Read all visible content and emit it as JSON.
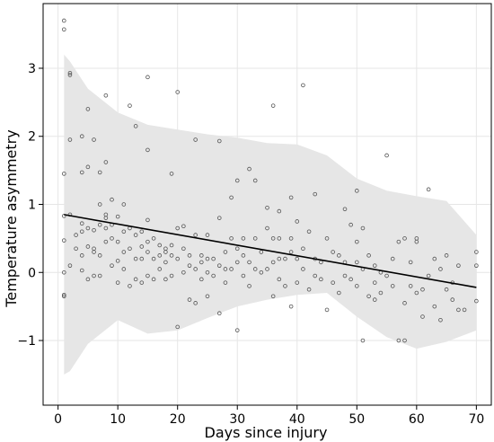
{
  "chart_data": {
    "type": "scatter",
    "title": "",
    "xlabel": "Days since injury",
    "ylabel": "Temperature asymmetry",
    "xlim": [
      -2.5,
      72.5
    ],
    "ylim": [
      -1.95,
      3.95
    ],
    "xticks": [
      0,
      10,
      20,
      30,
      40,
      50,
      60,
      70
    ],
    "xtick_labels": [
      "0",
      "10",
      "20",
      "30",
      "40",
      "50",
      "60",
      "70"
    ],
    "yticks": [
      -1,
      0,
      1,
      2,
      3
    ],
    "ytick_labels": [
      "−1",
      "0",
      "1",
      "2",
      "3"
    ],
    "grid": true,
    "legend": false,
    "colors": {
      "points": "#555555",
      "fit": "#000000",
      "band": "#e6e6e6",
      "grid": "#e6e6e6"
    },
    "fit_line": {
      "x": [
        1,
        70
      ],
      "y": [
        0.85,
        -0.22
      ]
    },
    "confidence_band": {
      "x": [
        1,
        2,
        5,
        10,
        15,
        20,
        25,
        30,
        35,
        40,
        45,
        50,
        55,
        60,
        65,
        70
      ],
      "upper": [
        3.2,
        3.1,
        2.7,
        2.35,
        2.17,
        2.1,
        2.03,
        1.98,
        1.9,
        1.88,
        1.72,
        1.38,
        1.2,
        1.12,
        1.05,
        0.55
      ],
      "lower": [
        -1.5,
        -1.45,
        -1.05,
        -0.7,
        -0.9,
        -0.85,
        -0.67,
        -0.5,
        -0.4,
        -0.33,
        -0.3,
        -0.65,
        -0.95,
        -1.12,
        -1.02,
        -0.85
      ]
    },
    "points": [
      [
        1,
        3.7
      ],
      [
        1,
        3.57
      ],
      [
        1,
        1.45
      ],
      [
        1,
        0.47
      ],
      [
        1,
        0.83
      ],
      [
        1,
        0
      ],
      [
        1,
        -0.33
      ],
      [
        1,
        -0.35
      ],
      [
        2,
        2.93
      ],
      [
        2,
        2.9
      ],
      [
        2,
        1.95
      ],
      [
        2,
        0.85
      ],
      [
        2,
        0.1
      ],
      [
        3,
        0.35
      ],
      [
        3,
        0.55
      ],
      [
        4,
        2
      ],
      [
        4,
        1.47
      ],
      [
        4,
        0.72
      ],
      [
        4,
        0.6
      ],
      [
        4,
        0.25
      ],
      [
        4,
        0.03
      ],
      [
        5,
        2.4
      ],
      [
        5,
        1.55
      ],
      [
        5,
        0.65
      ],
      [
        5,
        0.38
      ],
      [
        5,
        -0.1
      ],
      [
        6,
        1.95
      ],
      [
        6,
        0.62
      ],
      [
        6,
        0.35
      ],
      [
        6,
        0.3
      ],
      [
        6,
        -0.05
      ],
      [
        7,
        1.47
      ],
      [
        7,
        1
      ],
      [
        7,
        0.7
      ],
      [
        7,
        0.25
      ],
      [
        7,
        -0.05
      ],
      [
        8,
        2.6
      ],
      [
        8,
        1.62
      ],
      [
        8,
        0.85
      ],
      [
        8,
        0.8
      ],
      [
        8,
        0.65
      ],
      [
        8,
        0.45
      ],
      [
        9,
        1.07
      ],
      [
        9,
        0.7
      ],
      [
        9,
        0.5
      ],
      [
        9,
        0.1
      ],
      [
        10,
        0.82
      ],
      [
        10,
        0.45
      ],
      [
        10,
        0.17
      ],
      [
        10,
        -0.15
      ],
      [
        11,
        1
      ],
      [
        11,
        0.6
      ],
      [
        11,
        0.3
      ],
      [
        11,
        0.05
      ],
      [
        12,
        2.45
      ],
      [
        12,
        0.65
      ],
      [
        12,
        0.35
      ],
      [
        12,
        -0.2
      ],
      [
        13,
        2.15
      ],
      [
        13,
        0.55
      ],
      [
        13,
        0.2
      ],
      [
        13,
        -0.1
      ],
      [
        14,
        0.6
      ],
      [
        14,
        0.38
      ],
      [
        14,
        0.2
      ],
      [
        14,
        -0.15
      ],
      [
        15,
        2.87
      ],
      [
        15,
        1.8
      ],
      [
        15,
        0.77
      ],
      [
        15,
        0.45
      ],
      [
        15,
        0.3
      ],
      [
        15,
        -0.05
      ],
      [
        16,
        0.5
      ],
      [
        16,
        0.2
      ],
      [
        16,
        -0.1
      ],
      [
        17,
        0.4
      ],
      [
        17,
        0.25
      ],
      [
        17,
        0.05
      ],
      [
        18,
        0.35
      ],
      [
        18,
        0.3
      ],
      [
        18,
        0.15
      ],
      [
        18,
        -0.1
      ],
      [
        19,
        1.45
      ],
      [
        19,
        0.4
      ],
      [
        19,
        0.25
      ],
      [
        19,
        -0.05
      ],
      [
        20,
        2.65
      ],
      [
        20,
        0.65
      ],
      [
        20,
        0.2
      ],
      [
        20,
        -0.8
      ],
      [
        21,
        0.68
      ],
      [
        21,
        0.35
      ],
      [
        21,
        0
      ],
      [
        22,
        0.25
      ],
      [
        22,
        0.1
      ],
      [
        22,
        -0.4
      ],
      [
        23,
        1.95
      ],
      [
        23,
        0.55
      ],
      [
        23,
        0.05
      ],
      [
        23,
        -0.45
      ],
      [
        24,
        0.25
      ],
      [
        24,
        0.15
      ],
      [
        24,
        -0.1
      ],
      [
        25,
        0.55
      ],
      [
        25,
        0.2
      ],
      [
        25,
        0
      ],
      [
        25,
        -0.35
      ],
      [
        26,
        0.2
      ],
      [
        26,
        -0.05
      ],
      [
        27,
        1.93
      ],
      [
        27,
        0.8
      ],
      [
        27,
        0.1
      ],
      [
        27,
        -0.6
      ],
      [
        28,
        0.3
      ],
      [
        28,
        0.05
      ],
      [
        28,
        -0.15
      ],
      [
        29,
        1.1
      ],
      [
        29,
        0.5
      ],
      [
        29,
        0.05
      ],
      [
        30,
        1.35
      ],
      [
        30,
        0.35
      ],
      [
        30,
        0.15
      ],
      [
        30,
        -0.85
      ],
      [
        31,
        0.5
      ],
      [
        31,
        0.25
      ],
      [
        31,
        -0.05
      ],
      [
        32,
        1.52
      ],
      [
        32,
        0.15
      ],
      [
        32,
        -0.2
      ],
      [
        33,
        1.35
      ],
      [
        33,
        0.5
      ],
      [
        33,
        0.05
      ],
      [
        34,
        0.3
      ],
      [
        34,
        0
      ],
      [
        35,
        0.95
      ],
      [
        35,
        0.65
      ],
      [
        35,
        0.05
      ],
      [
        36,
        2.45
      ],
      [
        36,
        0.5
      ],
      [
        36,
        0.15
      ],
      [
        36,
        -0.35
      ],
      [
        37,
        0.9
      ],
      [
        37,
        0.5
      ],
      [
        37,
        0.2
      ],
      [
        37,
        -0.1
      ],
      [
        38,
        0.2
      ],
      [
        38,
        -0.2
      ],
      [
        39,
        1.1
      ],
      [
        39,
        0.5
      ],
      [
        39,
        0.3
      ],
      [
        39,
        -0.5
      ],
      [
        40,
        0.75
      ],
      [
        40,
        0.2
      ],
      [
        40,
        -0.15
      ],
      [
        41,
        2.75
      ],
      [
        41,
        0.35
      ],
      [
        41,
        0.05
      ],
      [
        42,
        0.6
      ],
      [
        42,
        -0.25
      ],
      [
        43,
        1.15
      ],
      [
        43,
        0.2
      ],
      [
        43,
        -0.05
      ],
      [
        44,
        0.15
      ],
      [
        44,
        -0.1
      ],
      [
        45,
        0.5
      ],
      [
        45,
        -0.55
      ],
      [
        46,
        0.3
      ],
      [
        46,
        -0.15
      ],
      [
        47,
        0.25
      ],
      [
        47,
        -0.3
      ],
      [
        48,
        0.93
      ],
      [
        48,
        0.15
      ],
      [
        48,
        -0.05
      ],
      [
        49,
        0.7
      ],
      [
        49,
        -0.1
      ],
      [
        50,
        1.2
      ],
      [
        50,
        0.45
      ],
      [
        50,
        0.15
      ],
      [
        50,
        -0.2
      ],
      [
        51,
        0.65
      ],
      [
        51,
        0.05
      ],
      [
        51,
        -1
      ],
      [
        52,
        0.25
      ],
      [
        52,
        -0.35
      ],
      [
        53,
        0.1
      ],
      [
        53,
        -0.15
      ],
      [
        53,
        -0.4
      ],
      [
        54,
        0
      ],
      [
        54,
        -0.3
      ],
      [
        55,
        1.72
      ],
      [
        55,
        -0.05
      ],
      [
        56,
        0.2
      ],
      [
        56,
        -0.2
      ],
      [
        57,
        0.45
      ],
      [
        57,
        -1
      ],
      [
        58,
        0.5
      ],
      [
        58,
        -0.45
      ],
      [
        58,
        -1
      ],
      [
        59,
        0.15
      ],
      [
        59,
        -0.2
      ],
      [
        60,
        0.5
      ],
      [
        60,
        0.45
      ],
      [
        60,
        -0.3
      ],
      [
        61,
        -0.65
      ],
      [
        61,
        -0.25
      ],
      [
        62,
        1.22
      ],
      [
        62,
        -0.05
      ],
      [
        63,
        0.2
      ],
      [
        63,
        -0.5
      ],
      [
        64,
        0.05
      ],
      [
        64,
        -0.7
      ],
      [
        65,
        0.25
      ],
      [
        65,
        -0.25
      ],
      [
        66,
        -0.15
      ],
      [
        66,
        -0.4
      ],
      [
        67,
        0.1
      ],
      [
        67,
        -0.55
      ],
      [
        68,
        -0.55
      ],
      [
        70,
        0.3
      ],
      [
        70,
        0.1
      ],
      [
        70,
        -0.42
      ]
    ]
  }
}
